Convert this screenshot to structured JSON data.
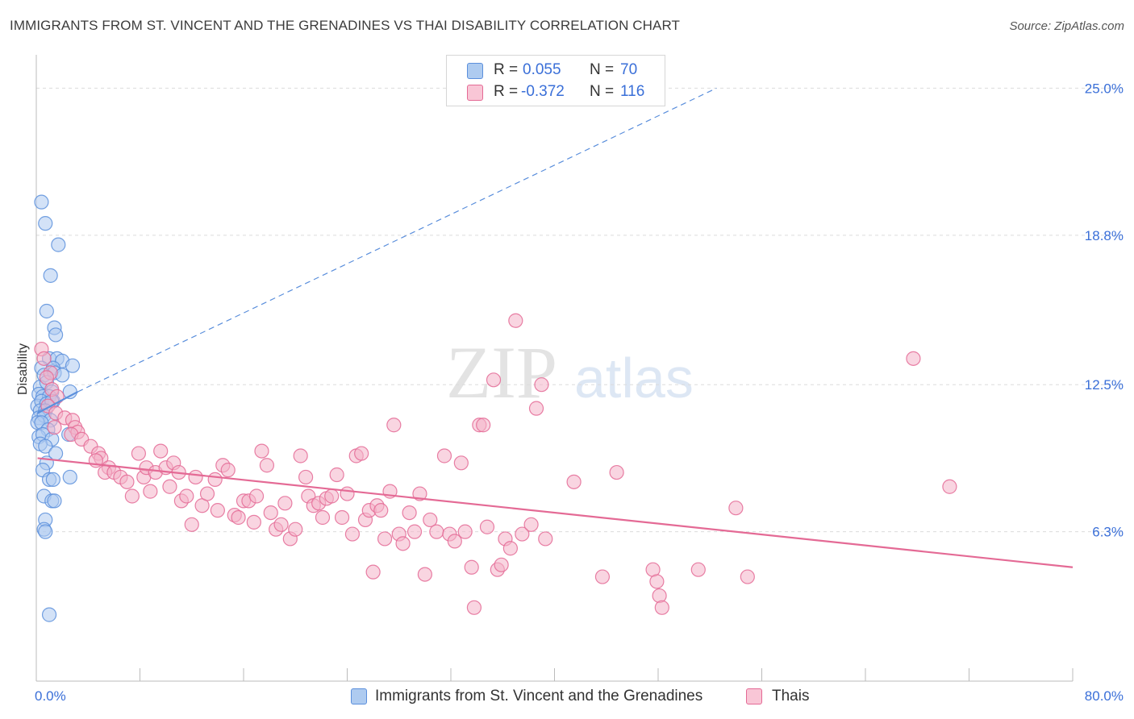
{
  "title": "IMMIGRANTS FROM ST. VINCENT AND THE GRENADINES VS THAI DISABILITY CORRELATION CHART",
  "source": "Source: ZipAtlas.com",
  "watermark": {
    "zip": "ZIP",
    "atlas": "atlas"
  },
  "legend_top": [
    {
      "r_label": "R =",
      "r_value": "0.055",
      "n_label": "N =",
      "n_value": "70"
    },
    {
      "r_label": "R =",
      "r_value": "-0.372",
      "n_label": "N =",
      "n_value": "116"
    }
  ],
  "legend_bottom": [
    {
      "label": "Immigrants from St. Vincent and the Grenadines"
    },
    {
      "label": "Thais"
    }
  ],
  "chart_data": {
    "type": "scatter",
    "title": "IMMIGRANTS FROM ST. VINCENT AND THE GRENADINES VS THAI DISABILITY CORRELATION CHART",
    "ylabel": "Disability",
    "xlabel": "",
    "xlim": [
      0,
      80
    ],
    "ylim": [
      0,
      26
    ],
    "x_tick_labels": [
      "0.0%",
      "80.0%"
    ],
    "y_ticks": [
      6.3,
      12.5,
      18.8,
      25.0
    ],
    "y_tick_labels": [
      "6.3%",
      "12.5%",
      "18.8%",
      "25.0%"
    ],
    "grid": true,
    "legend_position": "top-center",
    "series": [
      {
        "name": "Immigrants from St. Vincent and the Grenadines",
        "color": "#5b8fdc",
        "fill": "#aecbf0",
        "r": 0.055,
        "n": 70,
        "trend_solid": [
          [
            0.1,
            11.3
          ],
          [
            3.2,
            12.2
          ]
        ],
        "trend_dashed": [
          [
            3.2,
            12.2
          ],
          [
            52.5,
            25.0
          ]
        ],
        "points": [
          [
            0.4,
            20.2
          ],
          [
            0.7,
            19.3
          ],
          [
            1.7,
            18.4
          ],
          [
            1.1,
            17.1
          ],
          [
            0.8,
            15.6
          ],
          [
            1.4,
            14.9
          ],
          [
            1.5,
            14.6
          ],
          [
            1.0,
            13.6
          ],
          [
            1.6,
            13.6
          ],
          [
            2.0,
            13.5
          ],
          [
            2.8,
            13.3
          ],
          [
            0.4,
            13.2
          ],
          [
            1.3,
            13.2
          ],
          [
            0.6,
            12.9
          ],
          [
            1.4,
            13.0
          ],
          [
            2.0,
            12.9
          ],
          [
            0.3,
            12.4
          ],
          [
            0.8,
            12.6
          ],
          [
            1.2,
            12.2
          ],
          [
            2.6,
            12.2
          ],
          [
            0.2,
            12.1
          ],
          [
            0.5,
            12.0
          ],
          [
            1.0,
            12.0
          ],
          [
            1.3,
            11.8
          ],
          [
            0.1,
            11.6
          ],
          [
            0.4,
            11.8
          ],
          [
            0.8,
            11.7
          ],
          [
            1.2,
            11.8
          ],
          [
            0.3,
            11.4
          ],
          [
            0.7,
            11.4
          ],
          [
            0.2,
            11.1
          ],
          [
            0.6,
            11.2
          ],
          [
            1.1,
            11.0
          ],
          [
            0.1,
            10.9
          ],
          [
            0.4,
            10.9
          ],
          [
            0.9,
            10.6
          ],
          [
            0.2,
            10.3
          ],
          [
            0.5,
            10.4
          ],
          [
            1.2,
            10.2
          ],
          [
            2.5,
            10.4
          ],
          [
            0.3,
            10.0
          ],
          [
            0.7,
            9.9
          ],
          [
            1.5,
            9.6
          ],
          [
            0.8,
            9.2
          ],
          [
            0.5,
            8.9
          ],
          [
            1.0,
            8.5
          ],
          [
            1.3,
            8.5
          ],
          [
            2.6,
            8.6
          ],
          [
            0.6,
            7.8
          ],
          [
            1.2,
            7.6
          ],
          [
            1.4,
            7.6
          ],
          [
            0.7,
            6.8
          ],
          [
            0.6,
            6.4
          ],
          [
            0.7,
            6.3
          ],
          [
            1.0,
            2.8
          ]
        ]
      },
      {
        "name": "Thais",
        "color": "#e46a95",
        "fill": "#f4b3c8",
        "r": -0.372,
        "n": 116,
        "trend_solid": [
          [
            0.1,
            9.4
          ],
          [
            80.0,
            4.8
          ]
        ],
        "points": [
          [
            0.4,
            14.0
          ],
          [
            0.6,
            13.6
          ],
          [
            1.1,
            13.0
          ],
          [
            0.8,
            12.8
          ],
          [
            1.2,
            12.3
          ],
          [
            1.6,
            12.0
          ],
          [
            0.9,
            11.6
          ],
          [
            1.5,
            11.3
          ],
          [
            2.2,
            11.1
          ],
          [
            2.8,
            11.0
          ],
          [
            1.4,
            10.7
          ],
          [
            3.0,
            10.7
          ],
          [
            3.2,
            10.5
          ],
          [
            2.7,
            10.4
          ],
          [
            3.5,
            10.2
          ],
          [
            4.2,
            9.9
          ],
          [
            4.8,
            9.6
          ],
          [
            5.0,
            9.4
          ],
          [
            4.6,
            9.3
          ],
          [
            5.6,
            9.0
          ],
          [
            5.3,
            8.8
          ],
          [
            6.0,
            8.8
          ],
          [
            6.5,
            8.6
          ],
          [
            7.0,
            8.4
          ],
          [
            7.4,
            7.8
          ],
          [
            7.9,
            9.6
          ],
          [
            8.3,
            8.6
          ],
          [
            8.5,
            9.0
          ],
          [
            8.8,
            8.0
          ],
          [
            9.2,
            8.8
          ],
          [
            9.6,
            9.7
          ],
          [
            10.0,
            9.0
          ],
          [
            10.3,
            8.2
          ],
          [
            10.6,
            9.2
          ],
          [
            11.0,
            8.8
          ],
          [
            11.2,
            7.6
          ],
          [
            11.6,
            7.8
          ],
          [
            12.0,
            6.6
          ],
          [
            12.3,
            8.6
          ],
          [
            12.8,
            7.4
          ],
          [
            13.2,
            7.9
          ],
          [
            13.8,
            8.5
          ],
          [
            14.0,
            7.2
          ],
          [
            14.4,
            9.1
          ],
          [
            14.8,
            8.9
          ],
          [
            15.3,
            7.0
          ],
          [
            15.6,
            6.9
          ],
          [
            16.0,
            7.6
          ],
          [
            16.4,
            7.6
          ],
          [
            16.8,
            6.7
          ],
          [
            17.0,
            7.8
          ],
          [
            17.4,
            9.7
          ],
          [
            17.8,
            9.1
          ],
          [
            18.1,
            7.1
          ],
          [
            18.5,
            6.4
          ],
          [
            18.9,
            6.6
          ],
          [
            19.2,
            7.5
          ],
          [
            19.6,
            6.0
          ],
          [
            20.0,
            6.4
          ],
          [
            20.4,
            9.5
          ],
          [
            20.8,
            8.6
          ],
          [
            21.0,
            7.8
          ],
          [
            21.4,
            7.4
          ],
          [
            21.8,
            7.5
          ],
          [
            22.1,
            6.9
          ],
          [
            22.4,
            7.7
          ],
          [
            22.8,
            7.8
          ],
          [
            23.2,
            8.7
          ],
          [
            23.6,
            6.9
          ],
          [
            24.0,
            7.9
          ],
          [
            24.4,
            6.2
          ],
          [
            24.7,
            9.5
          ],
          [
            25.1,
            9.6
          ],
          [
            25.4,
            6.8
          ],
          [
            25.7,
            7.2
          ],
          [
            26.0,
            4.6
          ],
          [
            26.3,
            7.4
          ],
          [
            26.6,
            7.2
          ],
          [
            26.9,
            6.0
          ],
          [
            27.3,
            8.0
          ],
          [
            27.6,
            10.8
          ],
          [
            28.0,
            6.2
          ],
          [
            28.3,
            5.8
          ],
          [
            28.8,
            7.1
          ],
          [
            29.2,
            6.3
          ],
          [
            29.6,
            7.9
          ],
          [
            30.0,
            4.5
          ],
          [
            30.4,
            6.8
          ],
          [
            30.9,
            6.3
          ],
          [
            31.5,
            9.5
          ],
          [
            31.9,
            6.2
          ],
          [
            32.3,
            5.9
          ],
          [
            32.8,
            9.2
          ],
          [
            33.1,
            6.3
          ],
          [
            33.6,
            4.8
          ],
          [
            33.8,
            3.1
          ],
          [
            34.2,
            10.8
          ],
          [
            34.5,
            10.8
          ],
          [
            34.8,
            6.5
          ],
          [
            35.3,
            12.7
          ],
          [
            35.6,
            4.7
          ],
          [
            35.9,
            4.9
          ],
          [
            36.2,
            6.0
          ],
          [
            36.6,
            5.6
          ],
          [
            37.0,
            15.2
          ],
          [
            37.5,
            6.2
          ],
          [
            38.2,
            6.6
          ],
          [
            38.6,
            11.5
          ],
          [
            39.0,
            12.5
          ],
          [
            39.3,
            6.0
          ],
          [
            41.5,
            8.4
          ],
          [
            43.7,
            4.4
          ],
          [
            44.8,
            8.8
          ],
          [
            47.6,
            4.7
          ],
          [
            47.9,
            4.2
          ],
          [
            48.1,
            3.6
          ],
          [
            48.3,
            3.1
          ],
          [
            51.1,
            4.7
          ],
          [
            54.0,
            7.3
          ],
          [
            54.9,
            4.4
          ],
          [
            67.7,
            13.6
          ],
          [
            70.5,
            8.2
          ]
        ]
      }
    ]
  }
}
